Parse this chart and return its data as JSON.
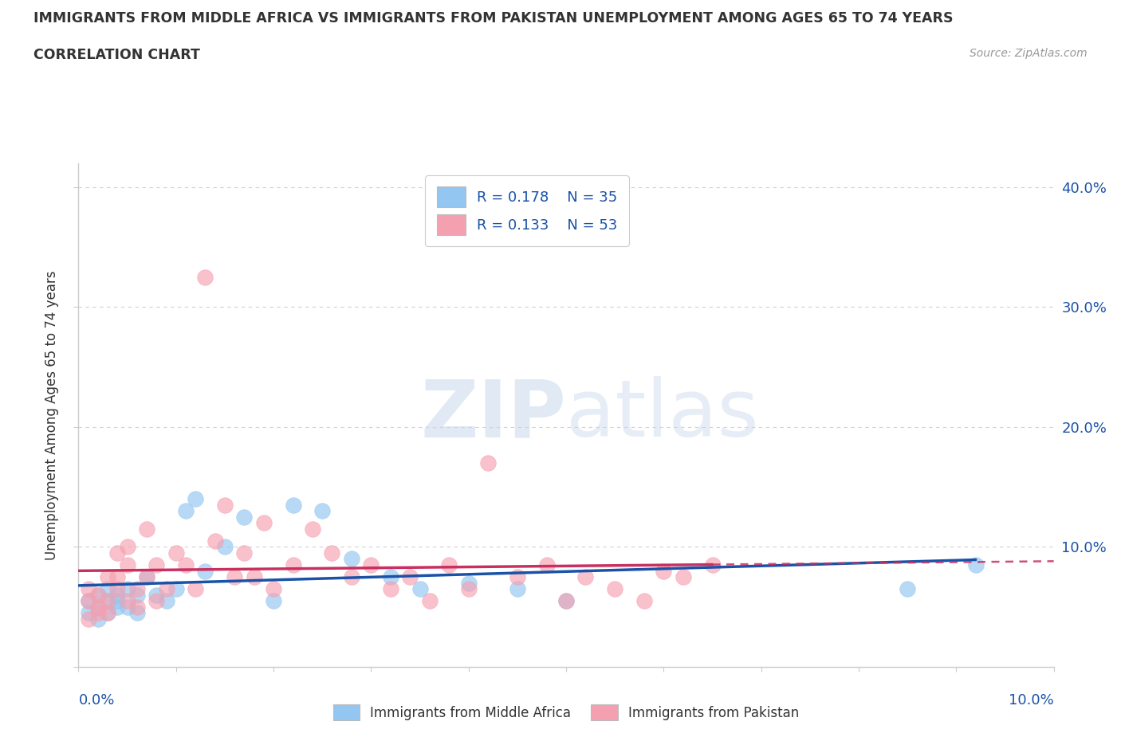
{
  "title_line1": "IMMIGRANTS FROM MIDDLE AFRICA VS IMMIGRANTS FROM PAKISTAN UNEMPLOYMENT AMONG AGES 65 TO 74 YEARS",
  "title_line2": "CORRELATION CHART",
  "source": "Source: ZipAtlas.com",
  "ylabel": "Unemployment Among Ages 65 to 74 years",
  "watermark_zip": "ZIP",
  "watermark_atlas": "atlas",
  "xlim": [
    0.0,
    0.1
  ],
  "ylim": [
    0.0,
    0.42
  ],
  "yticks": [
    0.0,
    0.1,
    0.2,
    0.3,
    0.4
  ],
  "ytick_labels": [
    "",
    "10.0%",
    "20.0%",
    "30.0%",
    "40.0%"
  ],
  "legend_R1": "R = 0.178",
  "legend_N1": "N = 35",
  "legend_R2": "R = 0.133",
  "legend_N2": "N = 53",
  "legend_label1": "Immigrants from Middle Africa",
  "legend_label2": "Immigrants from Pakistan",
  "color_blue": "#93c6f0",
  "color_pink": "#f5a0b0",
  "color_blue_line": "#1a52a8",
  "color_pink_line": "#c83060",
  "color_text_dark": "#333333",
  "color_axis_blue": "#1a52a8",
  "color_source": "#999999",
  "color_grid": "#cccccc",
  "background": "#ffffff",
  "blue_x": [
    0.001,
    0.001,
    0.002,
    0.002,
    0.002,
    0.003,
    0.003,
    0.003,
    0.004,
    0.004,
    0.004,
    0.005,
    0.005,
    0.006,
    0.006,
    0.007,
    0.008,
    0.009,
    0.01,
    0.011,
    0.012,
    0.013,
    0.015,
    0.017,
    0.02,
    0.022,
    0.025,
    0.028,
    0.032,
    0.035,
    0.04,
    0.045,
    0.05,
    0.085,
    0.092
  ],
  "blue_y": [
    0.045,
    0.055,
    0.04,
    0.06,
    0.05,
    0.055,
    0.065,
    0.045,
    0.06,
    0.05,
    0.055,
    0.065,
    0.05,
    0.06,
    0.045,
    0.075,
    0.06,
    0.055,
    0.065,
    0.13,
    0.14,
    0.08,
    0.1,
    0.125,
    0.055,
    0.135,
    0.13,
    0.09,
    0.075,
    0.065,
    0.07,
    0.065,
    0.055,
    0.065,
    0.085
  ],
  "pink_x": [
    0.001,
    0.001,
    0.001,
    0.002,
    0.002,
    0.002,
    0.003,
    0.003,
    0.003,
    0.004,
    0.004,
    0.004,
    0.005,
    0.005,
    0.005,
    0.006,
    0.006,
    0.007,
    0.007,
    0.008,
    0.008,
    0.009,
    0.01,
    0.011,
    0.012,
    0.013,
    0.014,
    0.015,
    0.016,
    0.017,
    0.018,
    0.019,
    0.02,
    0.022,
    0.024,
    0.026,
    0.028,
    0.03,
    0.032,
    0.034,
    0.036,
    0.038,
    0.04,
    0.042,
    0.045,
    0.048,
    0.05,
    0.052,
    0.055,
    0.058,
    0.06,
    0.062,
    0.065
  ],
  "pink_y": [
    0.04,
    0.055,
    0.065,
    0.045,
    0.06,
    0.05,
    0.055,
    0.075,
    0.045,
    0.065,
    0.095,
    0.075,
    0.1,
    0.055,
    0.085,
    0.065,
    0.05,
    0.075,
    0.115,
    0.085,
    0.055,
    0.065,
    0.095,
    0.085,
    0.065,
    0.325,
    0.105,
    0.135,
    0.075,
    0.095,
    0.075,
    0.12,
    0.065,
    0.085,
    0.115,
    0.095,
    0.075,
    0.085,
    0.065,
    0.075,
    0.055,
    0.085,
    0.065,
    0.17,
    0.075,
    0.085,
    0.055,
    0.075,
    0.065,
    0.055,
    0.08,
    0.075,
    0.085
  ],
  "pink_data_xlim": 0.065,
  "blue_data_xlim": 0.092
}
